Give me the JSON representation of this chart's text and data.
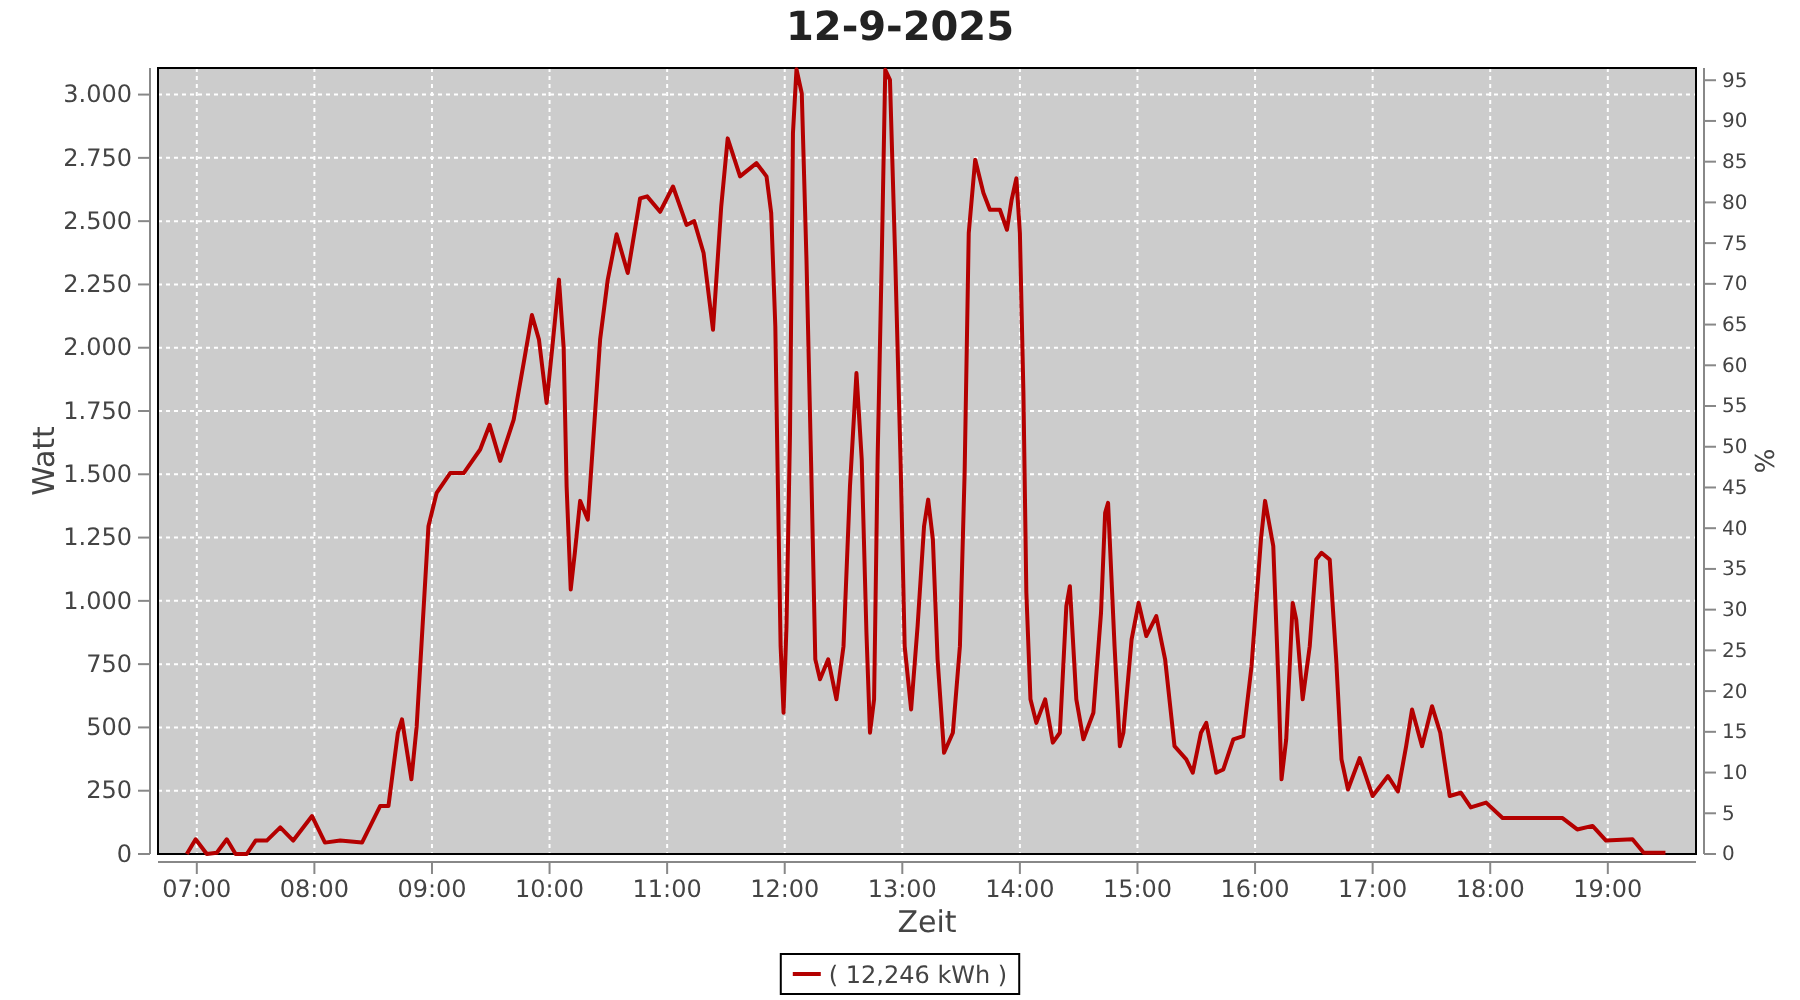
{
  "chart_data": {
    "type": "line",
    "title": "12-9-2025",
    "xlabel": "Zeit",
    "ylabel": "Watt",
    "y2label": "%",
    "xlim": [
      6.67,
      19.75
    ],
    "xticks": [
      {
        "value": 7,
        "label": "07:00"
      },
      {
        "value": 8,
        "label": "08:00"
      },
      {
        "value": 9,
        "label": "09:00"
      },
      {
        "value": 10,
        "label": "10:00"
      },
      {
        "value": 11,
        "label": "11:00"
      },
      {
        "value": 12,
        "label": "12:00"
      },
      {
        "value": 13,
        "label": "13:00"
      },
      {
        "value": 14,
        "label": "14:00"
      },
      {
        "value": 15,
        "label": "15:00"
      },
      {
        "value": 16,
        "label": "16:00"
      },
      {
        "value": 17,
        "label": "17:00"
      },
      {
        "value": 18,
        "label": "18:00"
      },
      {
        "value": 19,
        "label": "19:00"
      }
    ],
    "ylim": [
      0,
      3105
    ],
    "yticks": [
      0,
      250,
      500,
      750,
      {
        "value": 1000,
        "label": "1.000"
      },
      {
        "value": 1250,
        "label": "1.250"
      },
      {
        "value": 1500,
        "label": "1.500"
      },
      {
        "value": 1750,
        "label": "1.750"
      },
      {
        "value": 2000,
        "label": "2.000"
      },
      {
        "value": 2250,
        "label": "2.250"
      },
      {
        "value": 2500,
        "label": "2.500"
      },
      {
        "value": 2750,
        "label": "2.750"
      },
      {
        "value": 3000,
        "label": "3.000"
      }
    ],
    "y2lim": [
      0,
      96.5
    ],
    "y2ticks": [
      0,
      5,
      10,
      15,
      20,
      25,
      30,
      35,
      40,
      45,
      50,
      55,
      60,
      65,
      70,
      75,
      80,
      85,
      90,
      95
    ],
    "grid": true,
    "legend": "bottom",
    "marker": "none",
    "line_style": "solid",
    "series": [
      {
        "name": "( 12,246 kWh )",
        "color": "#b40000",
        "x": [
          6.915,
          6.99,
          7.085,
          7.17,
          7.255,
          7.33,
          7.425,
          7.5,
          7.595,
          7.71,
          7.82,
          7.98,
          8.09,
          8.22,
          8.405,
          8.56,
          8.63,
          8.71,
          8.745,
          8.825,
          8.87,
          8.93,
          8.97,
          9.04,
          9.155,
          9.27,
          9.41,
          9.49,
          9.58,
          9.695,
          9.78,
          9.85,
          9.91,
          9.975,
          10.03,
          10.08,
          10.12,
          10.145,
          10.18,
          10.215,
          10.26,
          10.325,
          10.43,
          10.495,
          10.57,
          10.665,
          10.77,
          10.83,
          10.94,
          11.05,
          11.165,
          11.23,
          11.31,
          11.39,
          11.46,
          11.515,
          11.62,
          11.76,
          11.845,
          11.885,
          11.92,
          11.94,
          11.965,
          11.99,
          12.015,
          12.045,
          12.07,
          12.1,
          12.145,
          12.185,
          12.225,
          12.26,
          12.3,
          12.37,
          12.44,
          12.5,
          12.555,
          12.61,
          12.655,
          12.695,
          12.725,
          12.76,
          12.79,
          12.825,
          12.855,
          12.895,
          12.94,
          12.985,
          13.02,
          13.075,
          13.13,
          13.185,
          13.22,
          13.26,
          13.3,
          13.355,
          13.43,
          13.49,
          13.53,
          13.565,
          13.62,
          13.69,
          13.745,
          13.83,
          13.89,
          13.93,
          13.97,
          14.0,
          14.03,
          14.055,
          14.09,
          14.14,
          14.215,
          14.28,
          14.34,
          14.395,
          14.425,
          14.48,
          14.54,
          14.625,
          14.69,
          14.725,
          14.75,
          14.805,
          14.85,
          14.88,
          14.95,
          15.01,
          15.075,
          15.16,
          15.235,
          15.315,
          15.415,
          15.47,
          15.54,
          15.585,
          15.67,
          15.73,
          15.815,
          15.9,
          15.97,
          16.05,
          16.085,
          16.155,
          16.2,
          16.225,
          16.265,
          16.32,
          16.35,
          16.405,
          16.465,
          16.52,
          16.565,
          16.635,
          16.69,
          16.735,
          16.79,
          16.89,
          17.0,
          17.13,
          17.215,
          17.285,
          17.335,
          17.42,
          17.505,
          17.575,
          17.655,
          17.75,
          17.835,
          17.965,
          18.105,
          18.615,
          18.74,
          18.87,
          18.985,
          19.21,
          19.305,
          19.49
        ],
        "values": [
          0,
          58,
          0,
          5,
          58,
          0,
          0,
          53,
          53,
          105,
          53,
          150,
          45,
          53,
          45,
          190,
          190,
          479,
          532,
          295,
          505,
          979,
          1295,
          1427,
          1505,
          1505,
          1598,
          1695,
          1553,
          1716,
          1940,
          2129,
          2032,
          1782,
          2032,
          2269,
          1998,
          1453,
          1045,
          1190,
          1395,
          1321,
          2032,
          2269,
          2448,
          2295,
          2590,
          2598,
          2537,
          2637,
          2485,
          2500,
          2374,
          2071,
          2558,
          2827,
          2677,
          2729,
          2677,
          2532,
          2085,
          1505,
          821,
          558,
          900,
          1663,
          2848,
          3100,
          3005,
          2348,
          1532,
          769,
          690,
          769,
          611,
          821,
          1453,
          1900,
          1558,
          874,
          479,
          611,
          1558,
          2348,
          3098,
          3058,
          2348,
          1558,
          821,
          571,
          900,
          1295,
          1400,
          1242,
          769,
          400,
          479,
          821,
          1505,
          2453,
          2743,
          2611,
          2545,
          2545,
          2466,
          2585,
          2669,
          2453,
          1821,
          1032,
          611,
          518,
          611,
          440,
          479,
          979,
          1058,
          611,
          453,
          558,
          953,
          1348,
          1387,
          821,
          426,
          479,
          848,
          992,
          861,
          940,
          769,
          426,
          374,
          321,
          479,
          518,
          321,
          334,
          453,
          466,
          742,
          1242,
          1395,
          1216,
          663,
          295,
          453,
          992,
          927,
          611,
          821,
          1163,
          1190,
          1163,
          769,
          374,
          255,
          379,
          229,
          308,
          247,
          426,
          571,
          426,
          584,
          479,
          229,
          242,
          184,
          203,
          142,
          142,
          97,
          111,
          53,
          58,
          5,
          5
        ]
      }
    ]
  }
}
